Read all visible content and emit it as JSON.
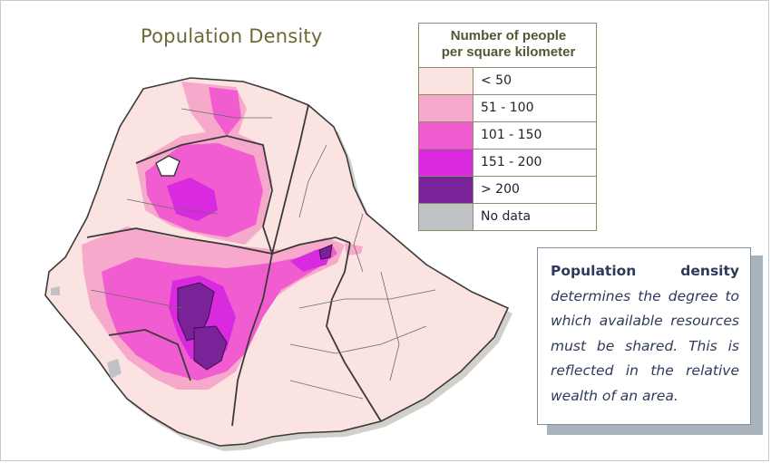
{
  "title": "Population Density",
  "legend": {
    "title_line1": "Number of people",
    "title_line2": "per square kilometer",
    "items": [
      {
        "label": "< 50",
        "color": "#fbe3e1"
      },
      {
        "label": "51 - 100",
        "color": "#f6a9cb"
      },
      {
        "label": "101 - 150",
        "color": "#f15cd0"
      },
      {
        "label": "151 - 200",
        "color": "#d92ae0"
      },
      {
        "label": "> 200",
        "color": "#7a2398"
      },
      {
        "label": "No data",
        "color": "#c0c3c5"
      }
    ]
  },
  "note": {
    "head_word1": "Population",
    "head_word2": "density",
    "body": "determines the degree to which available resources must be shared. This is reflected in the relative wealth of an area."
  },
  "colors": {
    "background": "#ffffff",
    "land": "#fbe3e1",
    "border": "#4a4a4a",
    "title": "#6b6a35",
    "note_text": "#2e3a5a"
  }
}
